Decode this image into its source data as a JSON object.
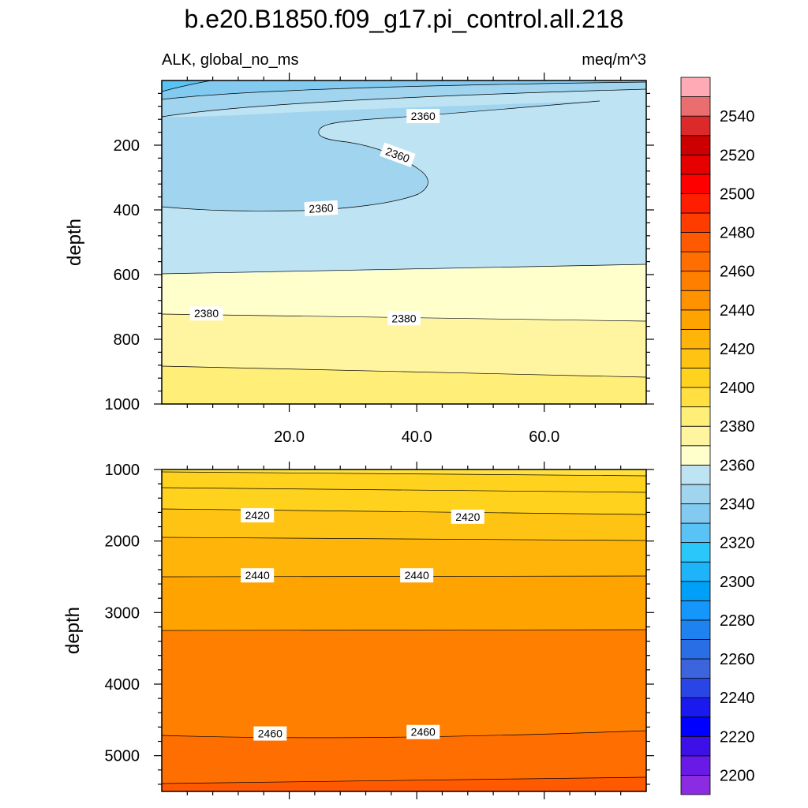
{
  "chart_data": {
    "type": "contour",
    "title": "b.e20.B1850.f09_g17.pi_control.all.218",
    "left_subtitle": "ALK, global_no_ms",
    "right_subtitle": "meq/m^3",
    "x_axis": {
      "range": [
        0,
        76
      ],
      "ticks": [
        "20.0",
        "40.0",
        "60.0"
      ],
      "tick_values": [
        20,
        40,
        60
      ]
    },
    "colorbar": {
      "levels": [
        2200,
        2210,
        2220,
        2230,
        2240,
        2250,
        2260,
        2270,
        2280,
        2290,
        2300,
        2310,
        2320,
        2330,
        2340,
        2350,
        2360,
        2370,
        2380,
        2390,
        2400,
        2410,
        2420,
        2430,
        2440,
        2450,
        2460,
        2470,
        2480,
        2490,
        2500,
        2510,
        2520,
        2530,
        2540,
        2550
      ],
      "labels": [
        "2200",
        "2220",
        "2240",
        "2260",
        "2280",
        "2300",
        "2320",
        "2340",
        "2360",
        "2380",
        "2400",
        "2420",
        "2440",
        "2460",
        "2480",
        "2500",
        "2520",
        "2540"
      ],
      "label_values": [
        2200,
        2220,
        2240,
        2260,
        2280,
        2300,
        2320,
        2340,
        2360,
        2380,
        2400,
        2420,
        2440,
        2460,
        2480,
        2500,
        2520,
        2540
      ],
      "colors": [
        "#8b2be2",
        "#6a1ae6",
        "#3c10e6",
        "#0000ff",
        "#1a1aee",
        "#2a45e6",
        "#3c64dc",
        "#2a6ee6",
        "#1e82f0",
        "#1496fa",
        "#00a0f8",
        "#1eb4fa",
        "#2ac8fa",
        "#5ac3f5",
        "#82caf0",
        "#a0d4ef",
        "#bee3f3",
        "#ffffcc",
        "#fff5a0",
        "#ffee78",
        "#ffe040",
        "#ffd21e",
        "#ffc314",
        "#ffb40a",
        "#ffa300",
        "#ff9200",
        "#ff8000",
        "#ff6e00",
        "#ff5a00",
        "#ff3c00",
        "#ff1e00",
        "#ff0000",
        "#e60000",
        "#cc0000",
        "#dc2a2a",
        "#ea6e6e",
        "#ffaab4"
      ]
    },
    "panels": [
      {
        "name": "upper",
        "ylabel": "depth",
        "y_range": [
          0,
          1000
        ],
        "y_ticks": [
          "200",
          "400",
          "600",
          "800",
          "1000"
        ],
        "y_tick_values": [
          200,
          400,
          600,
          800,
          1000
        ],
        "contour_labels": [
          {
            "text": "2360",
            "x": 41,
            "depth": 110,
            "rotate": 0
          },
          {
            "text": "2360",
            "x": 37,
            "depth": 230,
            "rotate": 20
          },
          {
            "text": "2360",
            "x": 25,
            "depth": 395,
            "rotate": -3
          },
          {
            "text": "2380",
            "x": 7,
            "depth": 720,
            "rotate": 0
          },
          {
            "text": "2380",
            "x": 38,
            "depth": 735,
            "rotate": 0
          }
        ]
      },
      {
        "name": "lower",
        "ylabel": "depth",
        "y_range": [
          1000,
          5500
        ],
        "y_ticks": [
          "1000",
          "2000",
          "3000",
          "4000",
          "5000"
        ],
        "y_tick_values": [
          1000,
          2000,
          3000,
          4000,
          5000
        ],
        "contour_labels": [
          {
            "text": "2420",
            "x": 15,
            "depth": 1640,
            "rotate": 0
          },
          {
            "text": "2420",
            "x": 48,
            "depth": 1660,
            "rotate": 0
          },
          {
            "text": "2440",
            "x": 15,
            "depth": 2480,
            "rotate": 0
          },
          {
            "text": "2440",
            "x": 40,
            "depth": 2480,
            "rotate": 0
          },
          {
            "text": "2460",
            "x": 17,
            "depth": 4690,
            "rotate": 0
          },
          {
            "text": "2460",
            "x": 41,
            "depth": 4670,
            "rotate": 0
          }
        ]
      }
    ]
  }
}
